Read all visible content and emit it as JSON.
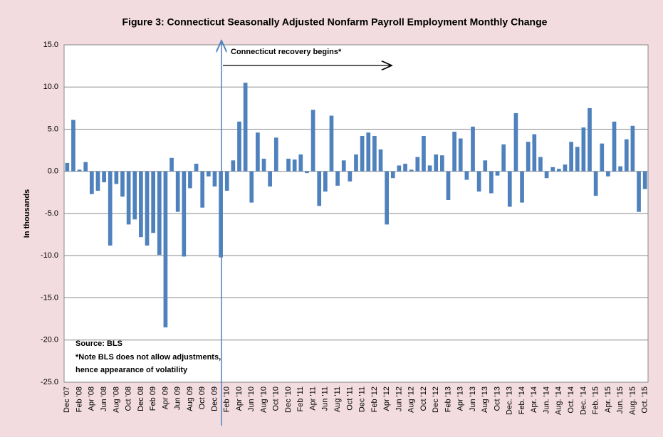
{
  "chart_data": {
    "type": "bar",
    "title": "Figure 3: Connecticut Seasonally Adjusted Nonfarm Payroll Employment Monthly Change",
    "y_label": "In thousands",
    "annotations": [
      "Connecticut recovery begins*",
      "Source: BLS",
      "*Note BLS does not allow adjustments,",
      "hence appearance of volatility"
    ],
    "categories": [
      "Dec '07",
      null,
      "Feb '08",
      null,
      "Apr '08",
      null,
      "Jun '08",
      null,
      "Aug '08",
      null,
      "Oct '08",
      null,
      "Dec 08",
      null,
      "Feb 09",
      null,
      "Apr 09",
      null,
      "Jun 09",
      null,
      "Aug 09",
      null,
      "Oct 09",
      null,
      "Dec 09",
      null,
      "Feb '10",
      null,
      "Apr '10",
      null,
      "Jun '10",
      null,
      "Aug '10",
      null,
      "Oct '10",
      null,
      "Dec '10",
      null,
      "Feb '11",
      null,
      "Apr '11",
      null,
      "Jun '11",
      null,
      "Aug '11",
      null,
      "Oct '11",
      null,
      "Dec '11",
      null,
      "Feb '12",
      null,
      "Apr '12",
      null,
      "Jun '12",
      null,
      "Aug '12",
      null,
      "Oct '12",
      null,
      "Dec '12",
      null,
      "Feb '13",
      null,
      "Apr '13",
      null,
      "Jun '13",
      null,
      "Aug '13",
      null,
      "Oct '13",
      null,
      "Dec. '13",
      null,
      "Feb. '14",
      null,
      "Apr. '14",
      null,
      "Jun. '14",
      null,
      "Aug. '14",
      null,
      "Oct. '14",
      null,
      "Dec. '14",
      null,
      "Feb. '15",
      null,
      "Apr. '15",
      null,
      "Jun. '15",
      null,
      "Aug. '15",
      null,
      "Oct. '15"
    ],
    "values": [
      1.0,
      6.1,
      0.2,
      1.1,
      -2.7,
      -2.3,
      -1.3,
      -8.8,
      -1.5,
      -3.0,
      -6.3,
      -5.7,
      -7.8,
      -8.8,
      -7.3,
      -9.9,
      -18.5,
      1.6,
      -4.8,
      -10.1,
      -2.0,
      0.9,
      -4.3,
      -0.6,
      -1.8,
      -10.2,
      -2.3,
      1.3,
      5.9,
      10.5,
      -3.7,
      4.6,
      1.5,
      -1.8,
      4.0,
      0.0,
      1.5,
      1.4,
      2.0,
      -0.2,
      7.3,
      -4.1,
      -2.4,
      6.6,
      -1.7,
      1.3,
      -1.2,
      2.0,
      4.2,
      4.6,
      4.2,
      2.6,
      -6.3,
      -0.8,
      0.7,
      0.9,
      0.2,
      1.7,
      4.2,
      0.7,
      2.0,
      1.9,
      -3.4,
      4.7,
      3.9,
      -1.0,
      5.3,
      -2.4,
      1.3,
      -2.6,
      -0.5,
      3.2,
      -4.2,
      6.9,
      -3.7,
      3.5,
      4.4,
      1.7,
      -0.8,
      0.5,
      0.3,
      0.8,
      3.5,
      2.9,
      5.2,
      7.5,
      -2.9,
      3.3,
      -0.6,
      5.9,
      0.6,
      3.8,
      5.4,
      -4.8,
      -2.1
    ],
    "color": "#4f81bd",
    "ylim": [
      -25,
      15
    ],
    "yticks": [
      {
        "value": -25,
        "label": "-25.0"
      },
      {
        "value": -20,
        "label": "-20.0"
      },
      {
        "value": -15,
        "label": "-15.0"
      },
      {
        "value": -10,
        "label": "-10.0"
      },
      {
        "value": -5,
        "label": "-5.0"
      },
      {
        "value": 0,
        "label": "0.0"
      },
      {
        "value": 5,
        "label": "5.0"
      },
      {
        "value": 10,
        "label": "10.0"
      },
      {
        "value": 15,
        "label": "15.0"
      }
    ],
    "grid": true
  }
}
